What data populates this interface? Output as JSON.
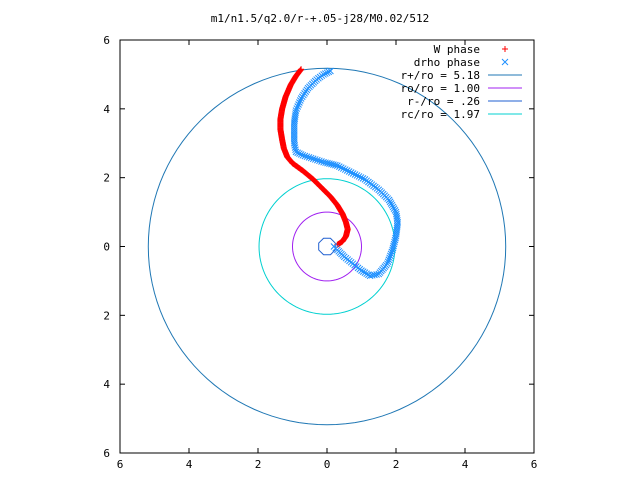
{
  "chart_data": {
    "type": "scatter",
    "title": "m1/n1.5/q2.0/r-+.05-j28/M0.02/512",
    "xlabel": "",
    "ylabel": "",
    "xlim": [
      -6,
      6
    ],
    "ylim": [
      -6,
      6
    ],
    "x_ticks": [
      -6,
      -4,
      -2,
      0,
      2,
      4,
      6
    ],
    "y_ticks": [
      -6,
      -4,
      -2,
      0,
      2,
      4,
      6
    ],
    "x_tick_labels": [
      "6",
      "4",
      "2",
      "0",
      "2",
      "4",
      "6"
    ],
    "y_tick_labels": [
      "6",
      "4",
      "2",
      "0",
      "2",
      "4",
      "6"
    ],
    "grid": false,
    "legend_position": "top-right",
    "series": [
      {
        "name": "W phase",
        "marker": "+",
        "color": "#ff0000",
        "points": [
          [
            -0.75,
            5.15
          ],
          [
            -0.9,
            4.95
          ],
          [
            -1.05,
            4.7
          ],
          [
            -1.2,
            4.35
          ],
          [
            -1.3,
            4.0
          ],
          [
            -1.35,
            3.7
          ],
          [
            -1.35,
            3.4
          ],
          [
            -1.3,
            3.1
          ],
          [
            -1.25,
            2.85
          ],
          [
            -1.15,
            2.6
          ],
          [
            -1.0,
            2.42
          ],
          [
            -0.7,
            2.2
          ],
          [
            -0.4,
            1.95
          ],
          [
            -0.15,
            1.7
          ],
          [
            0.1,
            1.45
          ],
          [
            0.3,
            1.2
          ],
          [
            0.45,
            0.95
          ],
          [
            0.55,
            0.7
          ],
          [
            0.6,
            0.5
          ],
          [
            0.55,
            0.3
          ],
          [
            0.45,
            0.15
          ],
          [
            0.3,
            0.05
          ]
        ]
      },
      {
        "name": "drho phase",
        "marker": "x",
        "color": "#1e90ff",
        "points": [
          [
            0.1,
            5.1
          ],
          [
            -0.1,
            5.0
          ],
          [
            -0.3,
            4.85
          ],
          [
            -0.55,
            4.6
          ],
          [
            -0.75,
            4.3
          ],
          [
            -0.9,
            3.95
          ],
          [
            -0.95,
            3.6
          ],
          [
            -0.95,
            3.3
          ],
          [
            -0.95,
            3.0
          ],
          [
            -0.9,
            2.75
          ],
          [
            -0.7,
            2.65
          ],
          [
            -0.4,
            2.55
          ],
          [
            -0.1,
            2.45
          ],
          [
            0.3,
            2.35
          ],
          [
            0.7,
            2.15
          ],
          [
            1.1,
            1.95
          ],
          [
            1.5,
            1.65
          ],
          [
            1.8,
            1.35
          ],
          [
            2.0,
            1.0
          ],
          [
            2.05,
            0.7
          ],
          [
            2.0,
            0.3
          ],
          [
            1.9,
            -0.1
          ],
          [
            1.75,
            -0.5
          ],
          [
            1.5,
            -0.8
          ],
          [
            1.25,
            -0.85
          ],
          [
            1.0,
            -0.7
          ],
          [
            0.75,
            -0.5
          ],
          [
            0.5,
            -0.3
          ],
          [
            0.3,
            -0.1
          ],
          [
            0.2,
            0.0
          ]
        ]
      }
    ],
    "circles": [
      {
        "name": "r+/ro = 5.18",
        "radius": 5.18,
        "color": "#1f77b4"
      },
      {
        "name": "ro/ro = 1.00",
        "radius": 1.0,
        "color": "#a020f0"
      },
      {
        "name": "r-/ro = .26",
        "radius": 0.26,
        "color": "#1f5fd0"
      },
      {
        "name": "rc/ro = 1.97",
        "radius": 1.97,
        "color": "#00d0d0"
      }
    ]
  }
}
